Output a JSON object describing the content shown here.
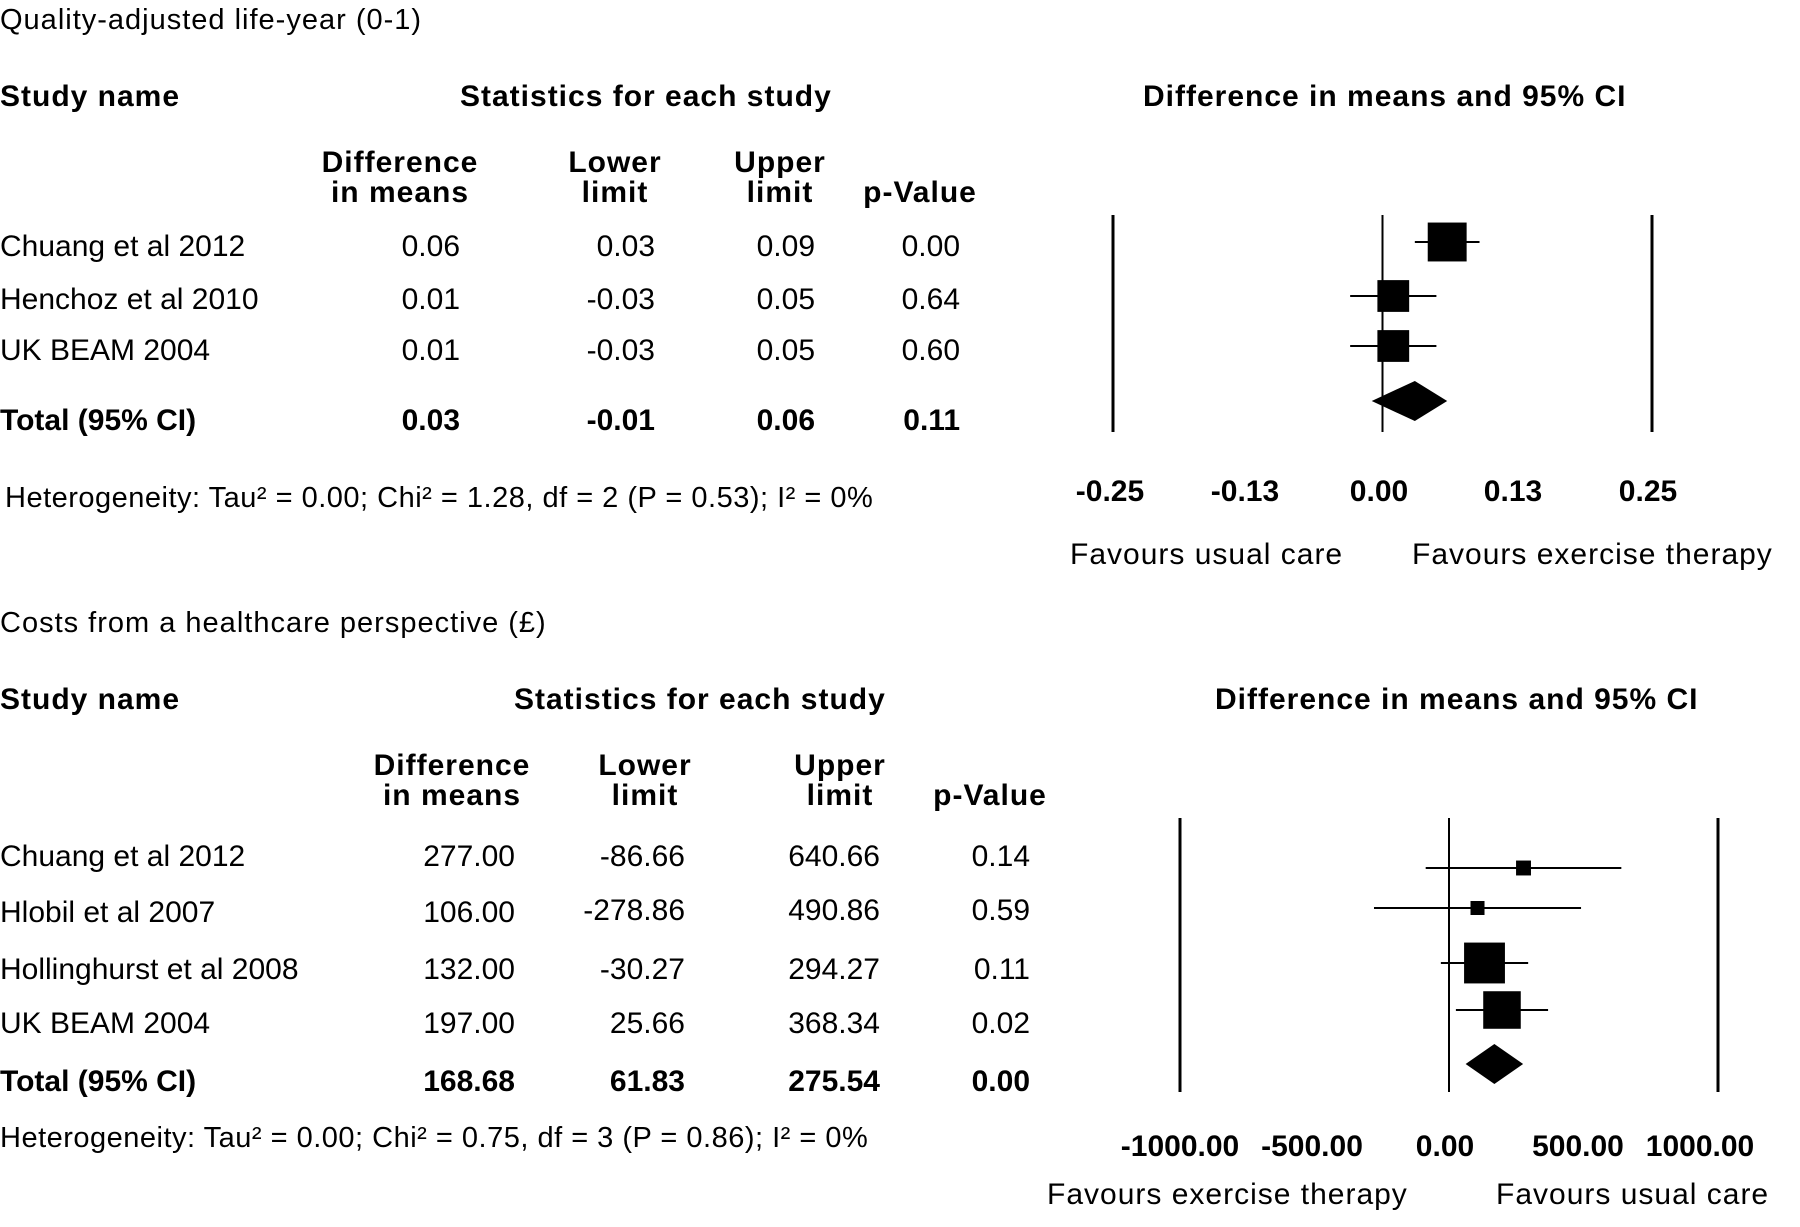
{
  "panels": [
    {
      "title": "Quality-adjusted life-year (0-1)",
      "study_header": "Study name",
      "stats_header": "Statistics for each study",
      "plot_header": "Difference in means and 95% CI",
      "col_headers": {
        "diff": [
          "Difference",
          "in means"
        ],
        "lower": [
          "Lower",
          "limit"
        ],
        "upper": [
          "Upper",
          "limit"
        ],
        "p": "p-Value"
      },
      "rows": [
        {
          "name": "Chuang et al 2012",
          "diff": "0.06",
          "lower": "0.03",
          "upper": "0.09",
          "p": "0.00"
        },
        {
          "name": "Henchoz et al 2010",
          "diff": "0.01",
          "lower": "-0.03",
          "upper": "0.05",
          "p": "0.64"
        },
        {
          "name": "UK BEAM 2004",
          "diff": "0.01",
          "lower": "-0.03",
          "upper": "0.05",
          "p": "0.60"
        }
      ],
      "total": {
        "name": "Total (95%  CI)",
        "diff": "0.03",
        "lower": "-0.01",
        "upper": "0.06",
        "p": "0.11"
      },
      "heterogeneity": "Heterogeneity: Tau² = 0.00; Chi² =  1.28, df = 2 (P = 0.53);  I² = 0%",
      "ticks": [
        "-0.25",
        "-0.13",
        "0.00",
        "0.13",
        "0.25"
      ],
      "favours_left": "Favours usual care",
      "favours_right": "Favours exercise therapy"
    },
    {
      "title": "Costs from a healthcare perspective (£)",
      "study_header": "Study name",
      "stats_header": "Statistics for each study",
      "plot_header": "Difference in means and 95% CI",
      "col_headers": {
        "diff": [
          "Difference",
          "in means"
        ],
        "lower": [
          "Lower",
          "limit"
        ],
        "upper": [
          "Upper",
          "limit"
        ],
        "p": "p-Value"
      },
      "rows": [
        {
          "name": "Chuang et al 2012",
          "diff": "277.00",
          "lower": "-86.66",
          "upper": "640.66",
          "p": "0.14"
        },
        {
          "name": "Hlobil et al 2007",
          "diff": "106.00",
          "lower": "-278.86",
          "upper": "490.86",
          "p": "0.59"
        },
        {
          "name": "Hollinghurst et al 2008",
          "diff": "132.00",
          "lower": "-30.27",
          "upper": "294.27",
          "p": "0.11"
        },
        {
          "name": "UK BEAM 2004",
          "diff": "197.00",
          "lower": "25.66",
          "upper": "368.34",
          "p": "0.02"
        }
      ],
      "total": {
        "name": "Total (95%  CI)",
        "diff": "168.68",
        "lower": "61.83",
        "upper": "275.54",
        "p": "0.00"
      },
      "heterogeneity": "Heterogeneity: Tau² = 0.00; Chi² =  0.75, df = 3 (P = 0.86);  I² = 0%",
      "ticks": [
        "-1000.00",
        "-500.00",
        "0.00",
        "500.00",
        "1000.00"
      ],
      "favours_left": "Favours exercise therapy",
      "favours_right": "Favours usual care"
    }
  ],
  "chart_data": [
    {
      "type": "forest",
      "title": "Quality-adjusted life-year (0-1)",
      "xlim": [
        -0.25,
        0.25
      ],
      "studies": [
        {
          "name": "Chuang et al 2012",
          "estimate": 0.06,
          "lower": 0.03,
          "upper": 0.09,
          "weight": 0.45
        },
        {
          "name": "Henchoz et al 2010",
          "estimate": 0.01,
          "lower": -0.03,
          "upper": 0.05,
          "weight": 0.3
        },
        {
          "name": "UK BEAM 2004",
          "estimate": 0.01,
          "lower": -0.03,
          "upper": 0.05,
          "weight": 0.3
        }
      ],
      "summary": {
        "estimate": 0.03,
        "lower": -0.01,
        "upper": 0.06
      }
    },
    {
      "type": "forest",
      "title": "Costs from a healthcare perspective (£)",
      "xlim": [
        -1000,
        1000
      ],
      "studies": [
        {
          "name": "Chuang et al 2012",
          "estimate": 277.0,
          "lower": -86.66,
          "upper": 640.66,
          "weight": 0.06
        },
        {
          "name": "Hlobil et al 2007",
          "estimate": 106.0,
          "lower": -278.86,
          "upper": 490.86,
          "weight": 0.05
        },
        {
          "name": "Hollinghurst et al 2008",
          "estimate": 132.0,
          "lower": -30.27,
          "upper": 294.27,
          "weight": 0.45
        },
        {
          "name": "UK BEAM 2004",
          "estimate": 197.0,
          "lower": 25.66,
          "upper": 368.34,
          "weight": 0.38
        }
      ],
      "summary": {
        "estimate": 168.68,
        "lower": 61.83,
        "upper": 275.54
      }
    }
  ]
}
